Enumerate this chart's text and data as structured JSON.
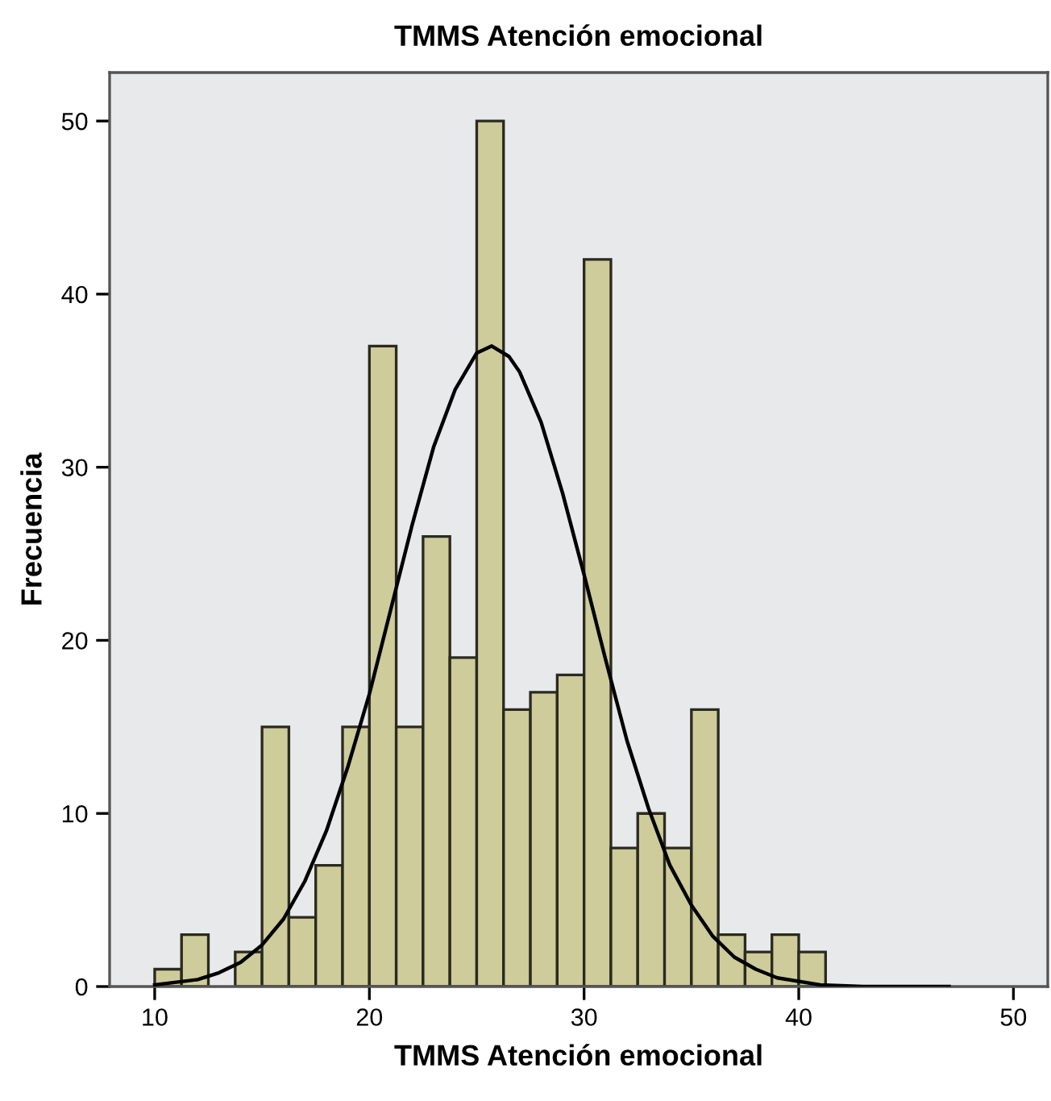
{
  "chart_data": {
    "type": "histogram",
    "title": "TMMS Atención emocional",
    "xlabel": "TMMS Atención emocional",
    "ylabel": "Frecuencia",
    "bins": [
      10,
      11.25,
      12.5,
      13.75,
      15,
      16.25,
      17.5,
      18.75,
      20,
      21.25,
      22.5,
      23.75,
      25,
      26.25,
      27.5,
      28.75,
      30,
      31.25,
      32.5,
      33.75,
      35,
      36.25,
      37.5,
      38.75,
      40,
      41.25
    ],
    "values": [
      1,
      3,
      0,
      2,
      15,
      4,
      7,
      15,
      37,
      15,
      26,
      19,
      50,
      16,
      17,
      18,
      42,
      8,
      10,
      8,
      16,
      3,
      2,
      3,
      2
    ],
    "color": "#cdcc9a",
    "series": [
      {
        "type": "line",
        "color": "#000000",
        "x": [
          10,
          12,
          13,
          14,
          15,
          16,
          17,
          18,
          19,
          20,
          21,
          22,
          23,
          24,
          25,
          25.7,
          26.5,
          27,
          28,
          29,
          30,
          31,
          32,
          33,
          34,
          35,
          36,
          37,
          38,
          39,
          41,
          43,
          47
        ],
        "values": [
          0.1,
          0.4,
          0.8,
          1.4,
          2.4,
          3.9,
          6.1,
          9.0,
          12.7,
          16.9,
          21.8,
          26.7,
          31.2,
          34.5,
          36.6,
          37,
          36.4,
          35.5,
          32.6,
          28.5,
          23.8,
          18.9,
          14.2,
          10.3,
          7.0,
          4.7,
          2.9,
          1.7,
          1.0,
          0.5,
          0.1,
          0,
          0
        ]
      }
    ],
    "xlim": [
      7.9,
      51.6
    ],
    "ylim": [
      0,
      52.8
    ],
    "xticks": [
      10,
      20,
      30,
      40,
      50
    ],
    "yticks": [
      0,
      10,
      20,
      30,
      40,
      50
    ],
    "grid": false,
    "legend": false
  }
}
